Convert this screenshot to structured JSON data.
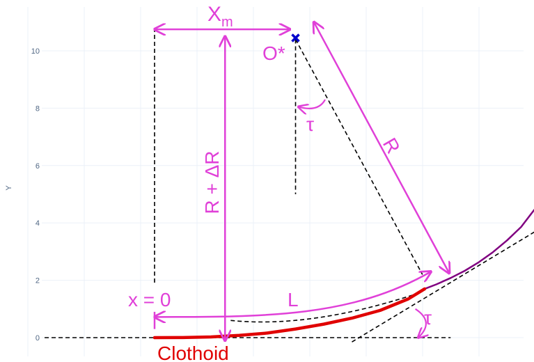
{
  "chart_data": {
    "type": "line",
    "title": "",
    "xlabel": "",
    "ylabel": "Y",
    "ylim": [
      -0.5,
      11.5
    ],
    "xlim": [
      -5.4,
      13.5
    ],
    "yticks": [
      0,
      2,
      4,
      6,
      8,
      10
    ],
    "grid": true,
    "series": [
      {
        "name": "",
        "color": "#800080",
        "x": [
          9.58,
          10.0,
          10.5,
          11.0,
          11.5,
          12.0,
          12.5,
          13.0,
          13.5
        ],
        "y": [
          1.7,
          1.86,
          2.08,
          2.33,
          2.63,
          2.98,
          3.39,
          3.86,
          4.5
        ]
      },
      {
        "name": "",
        "color": "#e00000",
        "x": [
          0.0,
          1.0,
          2.0,
          3.0,
          4.0,
          5.0,
          6.0,
          7.0,
          8.0,
          9.0,
          9.58
        ],
        "y": [
          0.0,
          0.003,
          0.024,
          0.08,
          0.16,
          0.3,
          0.47,
          0.68,
          0.95,
          1.35,
          1.7
        ]
      }
    ],
    "points": [
      {
        "label": "O*",
        "x": 5.0,
        "y": 10.45,
        "color": "#0000cc"
      }
    ],
    "annotations": {
      "xm": "X",
      "xm_sub": "m",
      "o_star": "O*",
      "tau_top": "τ",
      "tau_bottom": "τ",
      "r": "R",
      "r_plus_dr": "R + ΔR",
      "l": "L",
      "x_zero": "x = 0",
      "clothoid": "Clothoid"
    }
  },
  "colors": {
    "annotation": "#e040d8",
    "clothoid": "#e00000",
    "circle_arc": "#800080",
    "center_marker": "#0000cc",
    "dashed": "#000000",
    "grid": "#ebf0f8"
  }
}
